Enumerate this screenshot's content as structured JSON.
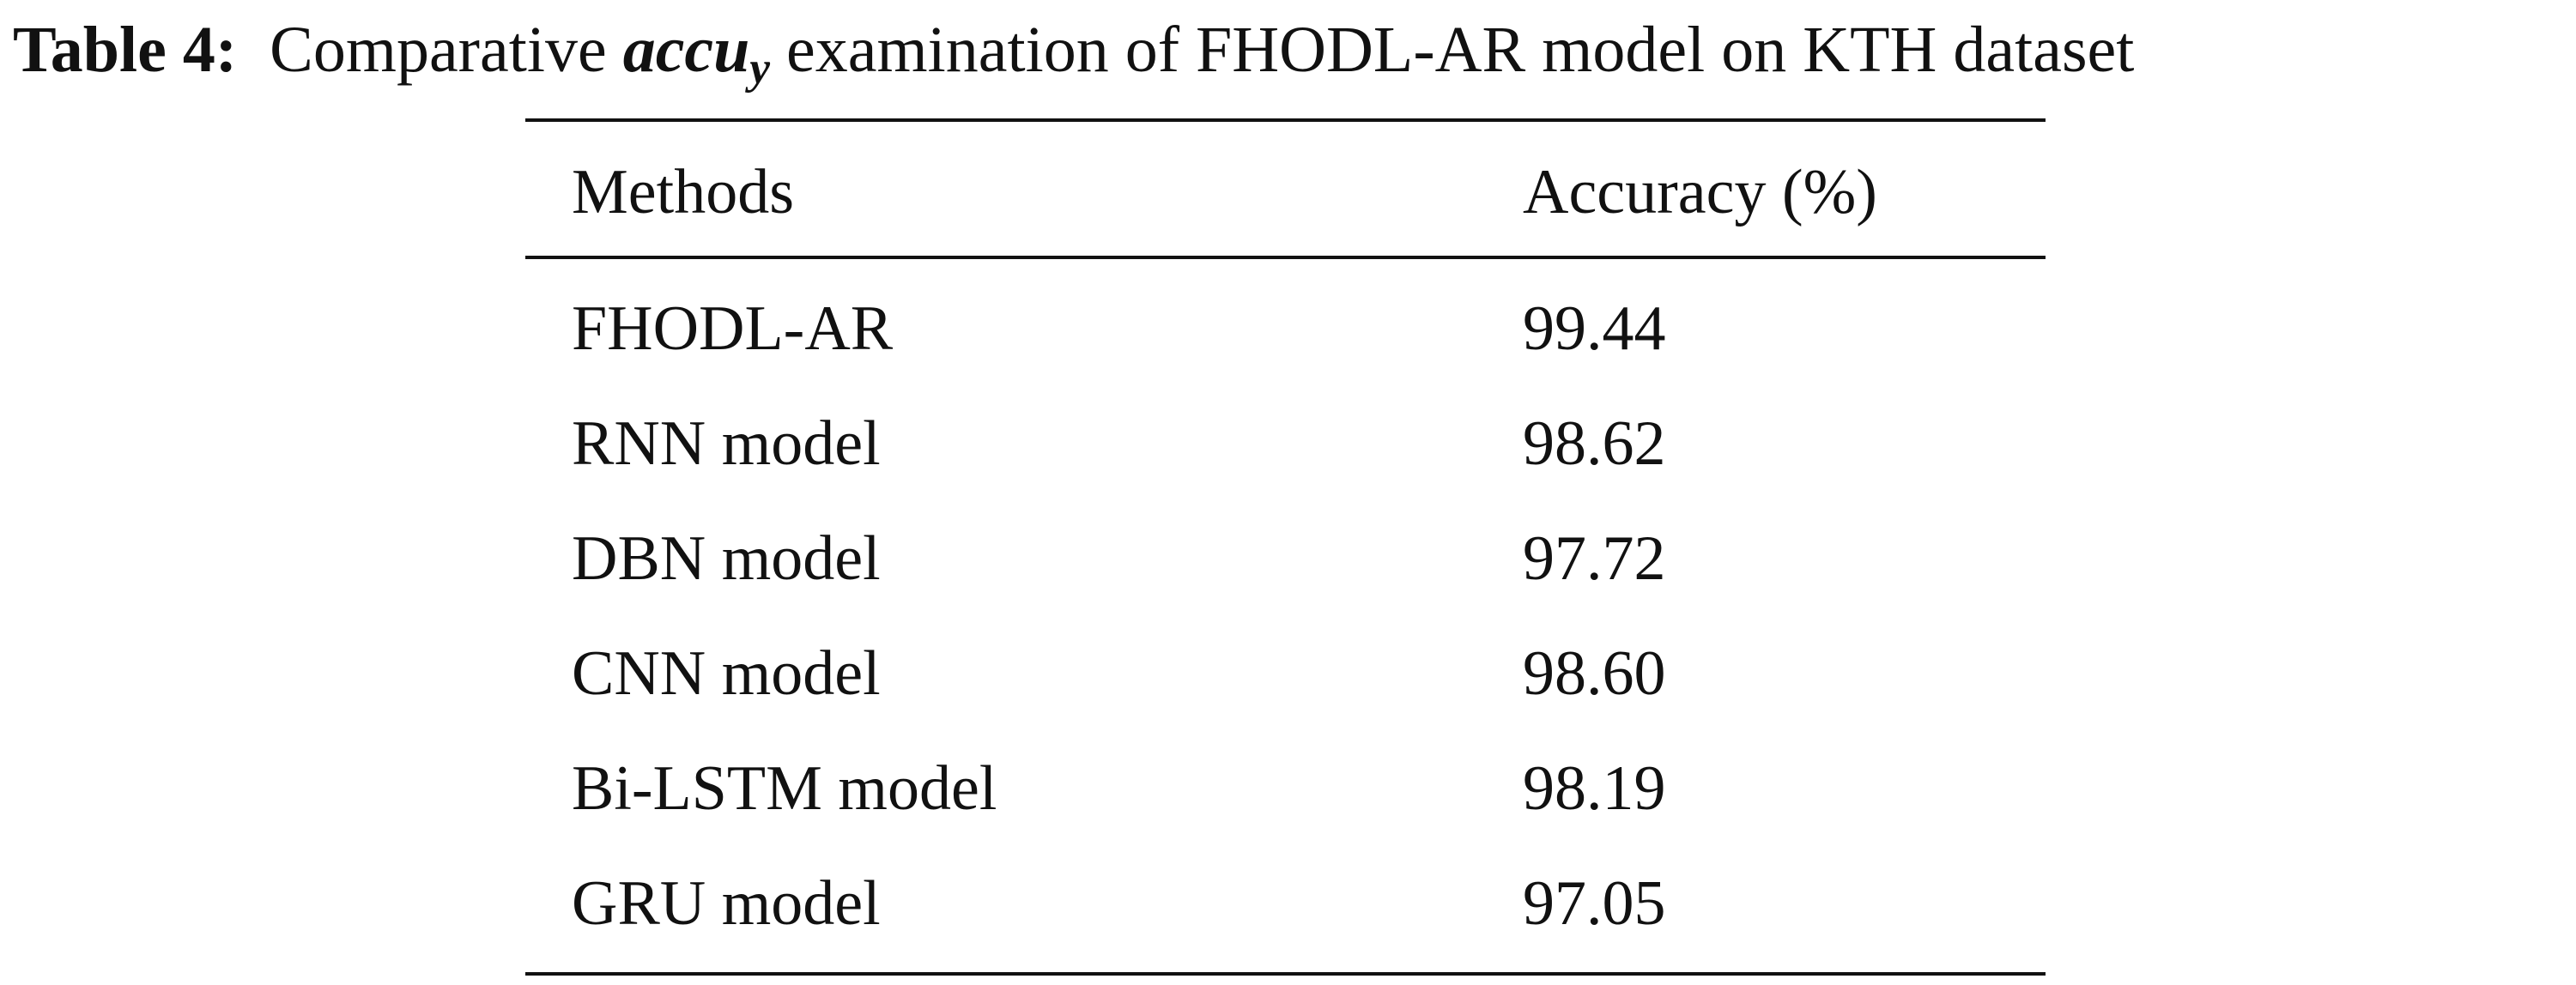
{
  "caption": {
    "label": "Table 4:",
    "text_before": "Comparative",
    "term": "accu",
    "term_subscript": "y",
    "text_after": "examination of FHODL-AR model on KTH dataset"
  },
  "table": {
    "header": [
      "Methods",
      "Accuracy (%)"
    ],
    "rows": [
      [
        "FHODL-AR",
        "99.44"
      ],
      [
        "RNN model",
        "98.62"
      ],
      [
        "DBN model",
        "97.72"
      ],
      [
        "CNN model",
        "98.60"
      ],
      [
        "Bi-LSTM model",
        "98.19"
      ],
      [
        "GRU model",
        "97.05"
      ]
    ]
  }
}
